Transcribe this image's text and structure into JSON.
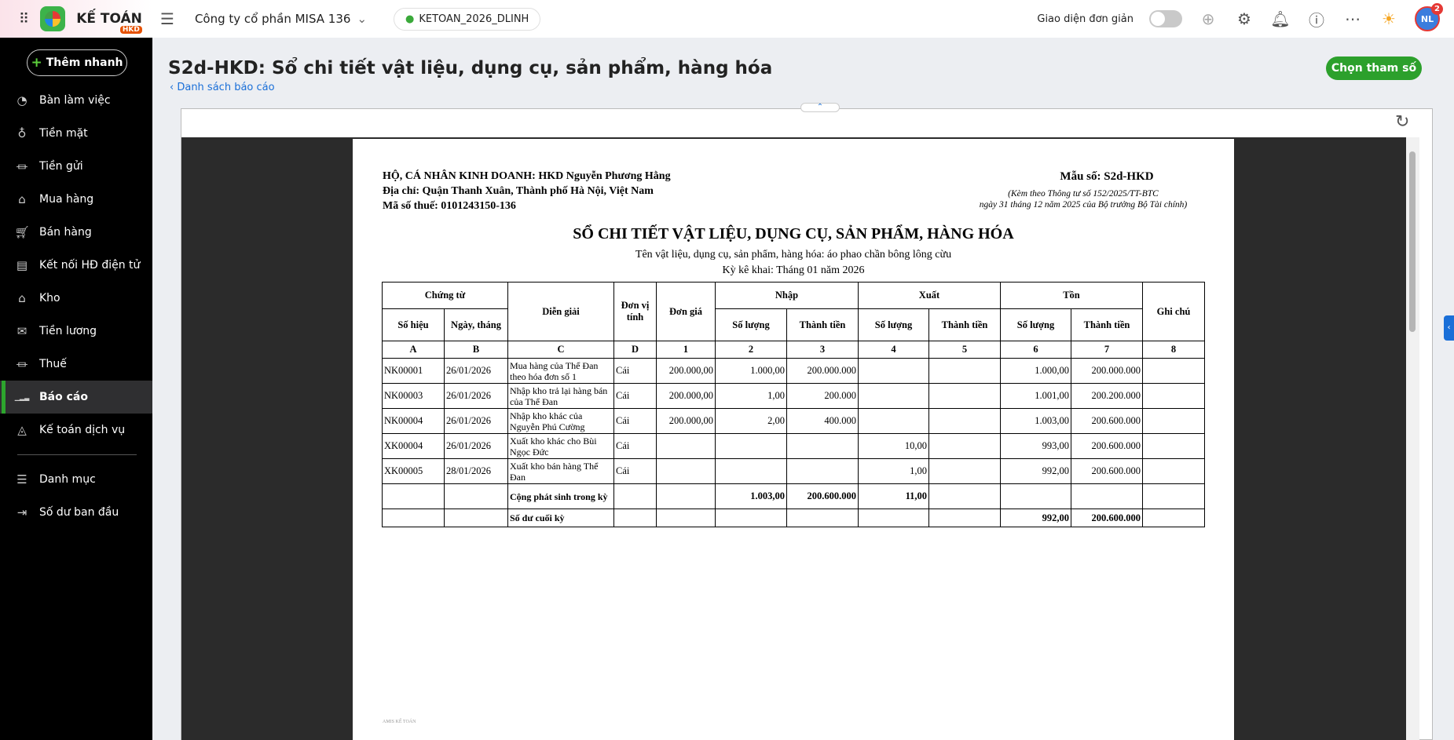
{
  "topbar": {
    "brand": "KẾ TOÁN",
    "brand_tag": "HKD",
    "company": "Công ty cổ phần MISA 136",
    "database": "KETOAN_2026_DLINH",
    "simple_ui_label": "Giao diện đơn giản",
    "simple_ui_on": false,
    "avatar_initials": "NL",
    "notification_count": "2"
  },
  "sidebar": {
    "quick_add": "Thêm nhanh",
    "items": [
      {
        "label": "Bàn làm việc",
        "icon": "dashboard-icon"
      },
      {
        "label": "Tiền mặt",
        "icon": "cash-bag-icon"
      },
      {
        "label": "Tiền gửi",
        "icon": "bank-icon"
      },
      {
        "label": "Mua hàng",
        "icon": "shopping-bag-icon"
      },
      {
        "label": "Bán hàng",
        "icon": "cart-icon"
      },
      {
        "label": "Kết nối HĐ điện tử",
        "icon": "document-icon"
      },
      {
        "label": "Kho",
        "icon": "warehouse-icon"
      },
      {
        "label": "Tiền lương",
        "icon": "payroll-icon"
      },
      {
        "label": "Thuế",
        "icon": "tax-icon"
      },
      {
        "label": "Báo cáo",
        "icon": "report-icon",
        "active": true
      },
      {
        "label": "Kế toán dịch vụ",
        "icon": "service-icon"
      }
    ],
    "items2": [
      {
        "label": "Danh mục",
        "icon": "list-icon"
      },
      {
        "label": "Số dư ban đầu",
        "icon": "opening-balance-icon"
      }
    ]
  },
  "page": {
    "title": "S2d-HKD: Sổ chi tiết vật liệu, dụng cụ, sản phẩm, hàng hóa",
    "back_link": "Danh sách báo cáo",
    "choose_params": "Chọn tham số"
  },
  "report": {
    "org": "HỘ, CÁ NHÂN KINH DOANH: HKD Nguyễn Phương Hằng",
    "address": "Địa chỉ: Quận Thanh Xuân, Thành phố Hà Nội, Việt Nam",
    "tax_code": "Mã số thuế: 0101243150-136",
    "form_no": "Mẫu số: S2d-HKD",
    "note1": "(Kèm theo Thông tư số 152/2025/TT-BTC",
    "note2": "ngày 31 tháng 12 năm 2025 của Bộ trưởng Bộ Tài chính)",
    "title": "SỔ CHI TIẾT VẬT LIỆU, DỤNG CỤ, SẢN PHẨM, HÀNG HÓA",
    "item_name": "Tên vật liệu, dụng cụ, sản phẩm, hàng hóa: áo phao chần bông lông cừu",
    "period": "Kỳ kê khai: Tháng 01 năm 2026",
    "headers": {
      "voucher": "Chứng từ",
      "no": "Số hiệu",
      "date": "Ngày, tháng",
      "desc": "Diễn giải",
      "unit": "Đơn vị tính",
      "price": "Đơn giá",
      "in": "Nhập",
      "out": "Xuất",
      "stock": "Tồn",
      "qty": "Số lượng",
      "amount": "Thành tiền",
      "note": "Ghi chú"
    },
    "codes": [
      "A",
      "B",
      "C",
      "D",
      "1",
      "2",
      "3",
      "4",
      "5",
      "6",
      "7",
      "8"
    ],
    "rows": [
      [
        "NK00001",
        "26/01/2026",
        "Mua hàng của Thể Đan theo hóa đơn số 1",
        "Cái",
        "200.000,00",
        "1.000,00",
        "200.000.000",
        "",
        "",
        "1.000,00",
        "200.000.000",
        ""
      ],
      [
        "NK00003",
        "26/01/2026",
        "Nhập kho trả lại hàng bán của Thể Đan",
        "Cái",
        "200.000,00",
        "1,00",
        "200.000",
        "",
        "",
        "1.001,00",
        "200.200.000",
        ""
      ],
      [
        "NK00004",
        "26/01/2026",
        "Nhập kho khác của Nguyễn Phú Cường",
        "Cái",
        "200.000,00",
        "2,00",
        "400.000",
        "",
        "",
        "1.003,00",
        "200.600.000",
        ""
      ],
      [
        "XK00004",
        "26/01/2026",
        "Xuất kho khác cho Bùi Ngọc Đức",
        "Cái",
        "",
        "",
        "",
        "10,00",
        "",
        "993,00",
        "200.600.000",
        ""
      ],
      [
        "XK00005",
        "28/01/2026",
        "Xuất kho bán hàng Thể Đan",
        "Cái",
        "",
        "",
        "",
        "1,00",
        "",
        "992,00",
        "200.600.000",
        ""
      ]
    ],
    "total_row": [
      "",
      "",
      "Cộng phát sinh trong kỳ",
      "",
      "",
      "1.003,00",
      "200.600.000",
      "11,00",
      "",
      "",
      "",
      ""
    ],
    "closing_row": [
      "",
      "",
      "Số dư cuối kỳ",
      "",
      "",
      "",
      "",
      "",
      "",
      "992,00",
      "200.600.000",
      ""
    ],
    "footer": "AMIS KẾ TOÁN"
  }
}
